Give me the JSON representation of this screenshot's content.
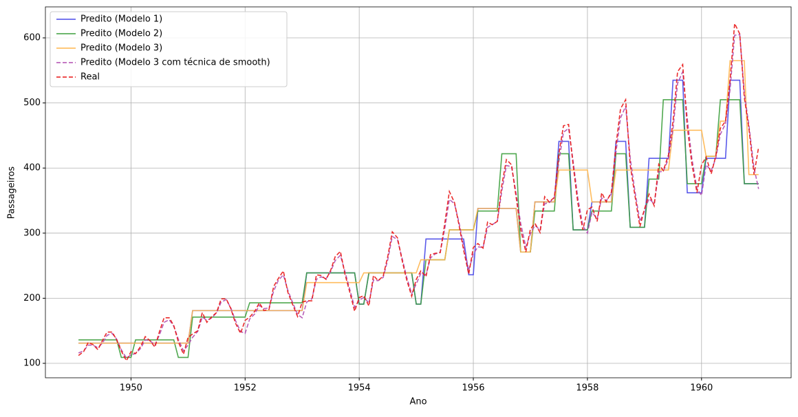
{
  "chart_data": {
    "type": "line",
    "xlabel": "Ano",
    "ylabel": "Passageiros",
    "xlim": [
      1948.5,
      1961.57
    ],
    "ylim": [
      77.8,
      647.6
    ],
    "xticks": [
      1950,
      1952,
      1954,
      1956,
      1958,
      1960
    ],
    "yticks": [
      100,
      200,
      300,
      400,
      500,
      600
    ],
    "grid": true,
    "legend": "upper-left",
    "x": [
      1949.08,
      1949.17,
      1949.25,
      1949.33,
      1949.42,
      1949.5,
      1949.58,
      1949.67,
      1949.75,
      1949.83,
      1949.92,
      1950,
      1950.08,
      1950.17,
      1950.25,
      1950.33,
      1950.42,
      1950.5,
      1950.58,
      1950.67,
      1950.75,
      1950.83,
      1950.92,
      1951,
      1951.08,
      1951.17,
      1951.25,
      1951.33,
      1951.42,
      1951.5,
      1951.58,
      1951.67,
      1951.75,
      1951.83,
      1951.92,
      1952,
      1952.08,
      1952.17,
      1952.25,
      1952.33,
      1952.42,
      1952.5,
      1952.58,
      1952.67,
      1952.75,
      1952.83,
      1952.92,
      1953,
      1953.08,
      1953.17,
      1953.25,
      1953.33,
      1953.42,
      1953.5,
      1953.58,
      1953.67,
      1953.75,
      1953.83,
      1953.92,
      1954,
      1954.08,
      1954.17,
      1954.25,
      1954.33,
      1954.42,
      1954.5,
      1954.58,
      1954.67,
      1954.75,
      1954.83,
      1954.92,
      1955,
      1955.08,
      1955.17,
      1955.25,
      1955.33,
      1955.42,
      1955.5,
      1955.58,
      1955.67,
      1955.75,
      1955.83,
      1955.92,
      1956,
      1956.08,
      1956.17,
      1956.25,
      1956.33,
      1956.42,
      1956.5,
      1956.58,
      1956.67,
      1956.75,
      1956.83,
      1956.92,
      1957,
      1957.08,
      1957.17,
      1957.25,
      1957.33,
      1957.42,
      1957.5,
      1957.58,
      1957.67,
      1957.75,
      1957.83,
      1957.92,
      1958,
      1958.08,
      1958.17,
      1958.25,
      1958.33,
      1958.42,
      1958.5,
      1958.58,
      1958.67,
      1958.75,
      1958.83,
      1958.92,
      1959,
      1959.08,
      1959.17,
      1959.25,
      1959.33,
      1959.42,
      1959.5,
      1959.58,
      1959.67,
      1959.75,
      1959.83,
      1959.92,
      1960,
      1960.08,
      1960.17,
      1960.25,
      1960.33,
      1960.42,
      1960.5,
      1960.58,
      1960.67,
      1960.75,
      1960.83,
      1960.92,
      1961
    ],
    "series": [
      {
        "name": "Predito (Modelo 1)",
        "color": "#4848e8",
        "linestyle": "solid",
        "values": [
          131,
          131,
          131,
          131,
          131,
          131,
          131,
          131,
          131,
          131,
          131,
          131,
          131,
          131,
          131,
          131,
          131,
          131,
          131,
          131,
          131,
          131,
          131,
          131,
          181,
          181,
          181,
          181,
          181,
          181,
          181,
          181,
          181,
          181,
          181,
          181,
          181,
          181,
          181,
          181,
          181,
          181,
          181,
          181,
          181,
          181,
          181,
          181,
          239,
          239,
          239,
          239,
          239,
          239,
          239,
          239,
          239,
          239,
          239,
          191,
          191,
          239,
          239,
          239,
          239,
          239,
          239,
          239,
          239,
          239,
          239,
          191,
          191,
          291,
          291,
          291,
          291,
          291,
          291,
          291,
          291,
          291,
          236,
          236,
          338,
          338,
          338,
          338,
          338,
          338,
          338,
          338,
          338,
          271,
          271,
          271,
          348,
          348,
          348,
          348,
          348,
          441,
          441,
          441,
          305,
          305,
          305,
          305,
          348,
          348,
          348,
          348,
          348,
          441,
          441,
          441,
          309,
          309,
          309,
          309,
          415,
          415,
          415,
          415,
          415,
          535,
          535,
          535,
          362,
          362,
          362,
          362,
          415,
          415,
          415,
          415,
          415,
          535,
          535,
          535,
          376,
          376,
          376,
          376
        ]
      },
      {
        "name": "Predito (Modelo 2)",
        "color": "#3c9e3c",
        "linestyle": "solid",
        "values": [
          136,
          136,
          136,
          136,
          136,
          136,
          136,
          136,
          136,
          109,
          109,
          109,
          136,
          136,
          136,
          136,
          136,
          136,
          136,
          136,
          136,
          109,
          109,
          109,
          171,
          171,
          171,
          171,
          171,
          171,
          171,
          171,
          171,
          171,
          171,
          171,
          193,
          193,
          193,
          193,
          193,
          193,
          193,
          193,
          193,
          193,
          193,
          193,
          239,
          239,
          239,
          239,
          239,
          239,
          239,
          239,
          239,
          239,
          239,
          191,
          191,
          239,
          239,
          239,
          239,
          239,
          239,
          239,
          239,
          239,
          239,
          191,
          191,
          259,
          259,
          259,
          259,
          259,
          305,
          305,
          305,
          305,
          305,
          305,
          334,
          334,
          334,
          334,
          334,
          422,
          422,
          422,
          422,
          271,
          271,
          271,
          334,
          334,
          334,
          334,
          334,
          422,
          422,
          422,
          305,
          305,
          305,
          305,
          334,
          334,
          334,
          334,
          334,
          422,
          422,
          422,
          309,
          309,
          309,
          309,
          383,
          383,
          383,
          505,
          505,
          505,
          505,
          505,
          376,
          376,
          376,
          376,
          418,
          418,
          418,
          505,
          505,
          505,
          505,
          505,
          376,
          376,
          376,
          376
        ]
      },
      {
        "name": "Predito (Modelo 3)",
        "color": "#ffb54c",
        "linestyle": "solid",
        "values": [
          131,
          131,
          131,
          131,
          131,
          131,
          131,
          131,
          131,
          131,
          131,
          131,
          131,
          131,
          131,
          131,
          131,
          131,
          131,
          131,
          131,
          131,
          131,
          131,
          181,
          181,
          181,
          181,
          181,
          181,
          181,
          181,
          181,
          181,
          181,
          181,
          181,
          181,
          181,
          181,
          181,
          181,
          181,
          181,
          181,
          181,
          181,
          181,
          224,
          224,
          224,
          224,
          224,
          224,
          224,
          224,
          224,
          224,
          224,
          224,
          239,
          239,
          239,
          239,
          239,
          239,
          239,
          239,
          239,
          239,
          239,
          239,
          259,
          259,
          259,
          259,
          259,
          259,
          305,
          305,
          305,
          305,
          305,
          305,
          338,
          338,
          338,
          338,
          338,
          338,
          338,
          338,
          338,
          271,
          271,
          271,
          348,
          348,
          348,
          348,
          348,
          397,
          397,
          397,
          397,
          397,
          397,
          397,
          348,
          348,
          348,
          348,
          348,
          397,
          397,
          397,
          397,
          397,
          397,
          397,
          397,
          397,
          397,
          397,
          397,
          458,
          458,
          458,
          458,
          458,
          458,
          458,
          418,
          418,
          418,
          472,
          472,
          565,
          565,
          565,
          565,
          390,
          390,
          390
        ]
      },
      {
        "name": "Predito (Modelo 3 com técnica de smooth)",
        "color": "#b04cb0",
        "linestyle": "dashed",
        "values": [
          116,
          119,
          128,
          128,
          124,
          131,
          143,
          146,
          137,
          121,
          108,
          113,
          115,
          123,
          136,
          135,
          128,
          144,
          163,
          167,
          157,
          137,
          119,
          128,
          140,
          149,
          171,
          166,
          170,
          178,
          194,
          198,
          185,
          166,
          149,
          146,
          168,
          176,
          189,
          184,
          185,
          211,
          227,
          236,
          212,
          194,
          175,
          170,
          194,
          199,
          229,
          233,
          230,
          241,
          258,
          266,
          241,
          215,
          186,
          197,
          201,
          193,
          228,
          227,
          232,
          259,
          295,
          290,
          262,
          233,
          207,
          222,
          238,
          236,
          262,
          268,
          271,
          307,
          352,
          345,
          316,
          280,
          243,
          268,
          279,
          278,
          309,
          313,
          318,
          365,
          404,
          402,
          361,
          315,
          279,
          299,
          312,
          305,
          345,
          347,
          354,
          410,
          455,
          461,
          410,
          355,
          311,
          300,
          332,
          322,
          354,
          350,
          361,
          424,
          477,
          495,
          415,
          366,
          318,
          335,
          353,
          345,
          394,
          395,
          414,
          460,
          530,
          548,
          476,
          415,
          368,
          358,
          405,
          396,
          415,
          452,
          468,
          521,
          604,
          605,
          515,
          466,
          400,
          368
        ]
      },
      {
        "name": "Real",
        "color": "#e81414",
        "linestyle": "dashed",
        "values": [
          112,
          118,
          132,
          129,
          121,
          135,
          148,
          148,
          136,
          119,
          104,
          118,
          115,
          126,
          141,
          135,
          125,
          149,
          170,
          170,
          158,
          133,
          114,
          140,
          145,
          150,
          178,
          163,
          172,
          178,
          199,
          199,
          184,
          162,
          146,
          166,
          171,
          180,
          193,
          181,
          183,
          218,
          230,
          242,
          209,
          191,
          172,
          194,
          196,
          196,
          236,
          235,
          229,
          243,
          264,
          272,
          237,
          211,
          180,
          201,
          204,
          188,
          235,
          227,
          234,
          264,
          302,
          293,
          259,
          229,
          203,
          229,
          242,
          233,
          267,
          269,
          270,
          315,
          364,
          347,
          312,
          274,
          237,
          278,
          284,
          277,
          317,
          313,
          318,
          374,
          413,
          405,
          355,
          306,
          271,
          306,
          315,
          301,
          356,
          348,
          355,
          422,
          465,
          467,
          404,
          347,
          305,
          336,
          340,
          318,
          362,
          348,
          363,
          435,
          491,
          505,
          404,
          359,
          310,
          337,
          360,
          342,
          406,
          396,
          420,
          472,
          548,
          559,
          463,
          407,
          362,
          405,
          417,
          391,
          419,
          461,
          472,
          535,
          622,
          606,
          508,
          461,
          390,
          432
        ]
      }
    ]
  }
}
